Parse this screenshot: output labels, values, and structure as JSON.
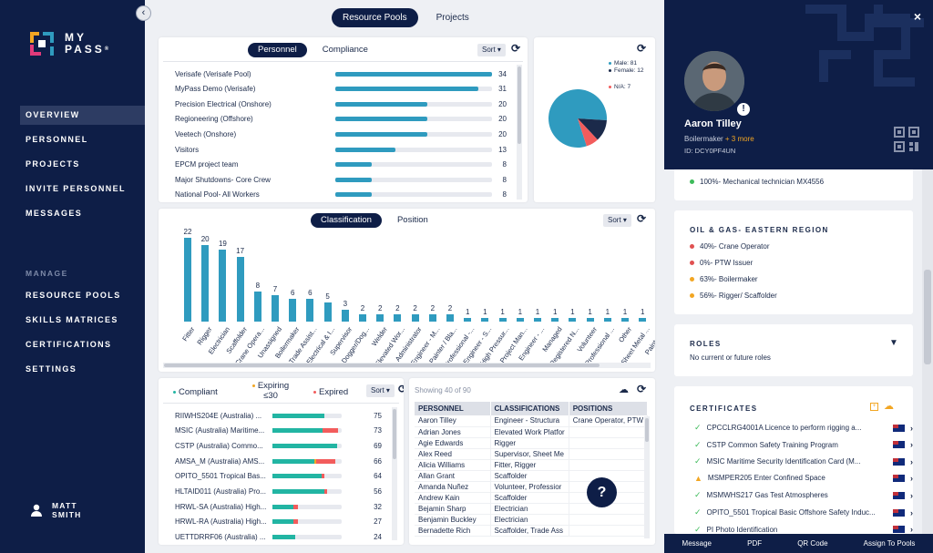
{
  "brand": {
    "name_line1": "MY",
    "name_line2": "PASS",
    "tm": "®"
  },
  "nav": {
    "items": [
      {
        "label": "OVERVIEW",
        "active": true
      },
      {
        "label": "PERSONNEL"
      },
      {
        "label": "PROJECTS"
      },
      {
        "label": "INVITE PERSONNEL"
      },
      {
        "label": "MESSAGES"
      }
    ],
    "manage_label": "MANAGE",
    "manage_items": [
      {
        "label": "RESOURCE POOLS"
      },
      {
        "label": "SKILLS MATRICES"
      },
      {
        "label": "CERTIFICATIONS"
      },
      {
        "label": "SETTINGS"
      }
    ],
    "user": {
      "first": "MATT",
      "last": "SMITH"
    }
  },
  "top_tabs": [
    {
      "label": "Resource Pools",
      "active": true
    },
    {
      "label": "Projects"
    }
  ],
  "pools": {
    "tabs": [
      {
        "label": "Personnel",
        "active": true
      },
      {
        "label": "Compliance"
      }
    ],
    "sort_label": "Sort ▾",
    "max": 34,
    "rows": [
      {
        "label": "Verisafe (Verisafe Pool)",
        "value": 34
      },
      {
        "label": "MyPass Demo (Verisafe)",
        "value": 31
      },
      {
        "label": "Precision Electrical (Onshore)",
        "value": 20
      },
      {
        "label": "Regioneering (Offshore)",
        "value": 20
      },
      {
        "label": "Veetech (Onshore)",
        "value": 20
      },
      {
        "label": "Visitors",
        "value": 13
      },
      {
        "label": "EPCM project team",
        "value": 8
      },
      {
        "label": "Major Shutdowns- Core Crew",
        "value": 8
      },
      {
        "label": "National Pool- All Workers",
        "value": 8
      }
    ]
  },
  "gender": {
    "legend": [
      {
        "label": "Male: 81",
        "color": "#2f9bbf"
      },
      {
        "label": "Female: 12",
        "color": "#1b2a4a"
      },
      {
        "label": "N/A: 7",
        "color": "#f25c5c"
      }
    ],
    "slices": [
      81,
      12,
      7
    ]
  },
  "classification": {
    "tabs": [
      {
        "label": "Classification",
        "active": true
      },
      {
        "label": "Position"
      }
    ],
    "sort_label": "Sort ▾"
  },
  "chart_data": {
    "type": "bar",
    "categories": [
      "Fitter",
      "Rigger",
      "Electrician",
      "Scaffolder",
      "Crane Opera...",
      "Unassigned",
      "Boilermaker",
      "Trade Assist...",
      "Electrical & I...",
      "Supervisor",
      "Dogger/Dog...",
      "Welder",
      "Elevated Wor...",
      "Administrator",
      "Engineer - M...",
      "Painter / Bla...",
      "Professional -...",
      "Engineer - S...",
      "High Pressur...",
      "Project Man...",
      "Engineer - ...",
      "Managed",
      "Registered N...",
      "Volunteer",
      "Professional ...",
      "Other",
      "Sheet Metal ...",
      "Paint Co...",
      "N..."
    ],
    "values": [
      22,
      20,
      19,
      17,
      8,
      7,
      6,
      6,
      5,
      3,
      2,
      2,
      2,
      2,
      2,
      2,
      1,
      1,
      1,
      1,
      1,
      1,
      1,
      1,
      1,
      1,
      1,
      1,
      1
    ],
    "ylim": [
      0,
      22
    ]
  },
  "certs": {
    "legend": [
      {
        "label": "Compliant",
        "color": "#22b5a3"
      },
      {
        "label": "Expiring ≤30",
        "color": "#f2a623"
      },
      {
        "label": "Expired",
        "color": "#f25c5c"
      }
    ],
    "sort_label": "Sort ▾",
    "rows": [
      {
        "label": "RIIWHS204E (Australia) ...",
        "value": 75,
        "green": 0.75,
        "orange": 0,
        "red": 0
      },
      {
        "label": "MSIC (Australia) Maritime...",
        "value": 73,
        "green": 0.73,
        "orange": 0,
        "red": 0.22
      },
      {
        "label": "CSTP (Australia) Commo...",
        "value": 69,
        "green": 0.93,
        "orange": 0,
        "red": 0
      },
      {
        "label": "AMSA_M (Australia) AMS...",
        "value": 66,
        "green": 0.6,
        "orange": 0.03,
        "red": 0.28
      },
      {
        "label": "OPITO_5501 Tropical Bas...",
        "value": 64,
        "green": 0.71,
        "orange": 0,
        "red": 0.04
      },
      {
        "label": "HLTAID011 (Australia) Pro...",
        "value": 56,
        "green": 0.75,
        "orange": 0,
        "red": 0.04
      },
      {
        "label": "HRWL-SA (Australia) High...",
        "value": 32,
        "green": 0.3,
        "orange": 0,
        "red": 0.07
      },
      {
        "label": "HRWL-RA (Australia) High...",
        "value": 27,
        "green": 0.3,
        "orange": 0,
        "red": 0.07
      },
      {
        "label": "UETTDRRF06 (Australia) ...",
        "value": 24,
        "green": 0.33,
        "orange": 0,
        "red": 0
      }
    ]
  },
  "personnel_table": {
    "showing": "Showing 40 of 90",
    "headers": [
      "PERSONNEL",
      "CLASSIFICATIONS",
      "POSITIONS"
    ],
    "rows": [
      [
        "Aaron Tilley",
        "Engineer - Structura",
        "Crane Operator, PTW"
      ],
      [
        "Adrian Jones",
        "Elevated Work Platfor",
        ""
      ],
      [
        "Agie Edwards",
        "Rigger",
        ""
      ],
      [
        "Alex Reed",
        "Supervisor, Sheet Me",
        ""
      ],
      [
        "Alicia Williams",
        "Fitter, Rigger",
        ""
      ],
      [
        "Allan Grant",
        "Scaffolder",
        ""
      ],
      [
        "Amanda Nuñez",
        "Volunteer, Professior",
        ""
      ],
      [
        "Andrew Kain",
        "Scaffolder",
        ""
      ],
      [
        "Bejamin Sharp",
        "Electrician",
        ""
      ],
      [
        "Benjamin Buckley",
        "Electrician",
        ""
      ],
      [
        "Bernadette Rich",
        "Scaffolder, Trade Ass",
        ""
      ]
    ]
  },
  "help_label": "?",
  "profile": {
    "name": "Aaron Tilley",
    "role": "Boilermaker",
    "more": " + 3 more",
    "id": "ID: DCY0PF4UN",
    "badge": "!",
    "close": "×"
  },
  "project_top": {
    "item": "100%- Mechanical technician MX4556",
    "color": "#3dbb5a"
  },
  "oil_gas": {
    "title": "OIL & GAS- EASTERN REGION",
    "items": [
      {
        "label": "40%- Crane Operator",
        "color": "#e05151"
      },
      {
        "label": "0%- PTW Issuer",
        "color": "#e05151"
      },
      {
        "label": "63%- Boilermaker",
        "color": "#f2a623"
      },
      {
        "label": "56%- Rigger/ Scaffolder",
        "color": "#f2a623"
      }
    ]
  },
  "roles": {
    "title": "ROLES",
    "empty": "No current or future roles"
  },
  "certificates": {
    "title": "CERTIFICATES",
    "items": [
      {
        "label": "CPCCLRG4001A Licence to perform rigging a...",
        "status": "ok"
      },
      {
        "label": "CSTP Common Safety Training Program",
        "status": "ok"
      },
      {
        "label": "MSIC Maritime Security Identification Card (M...",
        "status": "ok"
      },
      {
        "label": "MSMPER205 Enter Confined Space",
        "status": "warn"
      },
      {
        "label": "MSMWHS217 Gas Test Atmospheres",
        "status": "ok"
      },
      {
        "label": "OPITO_5501 Tropical Basic Offshore Safety Induc...",
        "status": "ok"
      },
      {
        "label": "PI Photo Identification",
        "status": "ok"
      }
    ]
  },
  "actions": [
    "Message",
    "PDF",
    "QR Code",
    "Assign To Pools"
  ]
}
